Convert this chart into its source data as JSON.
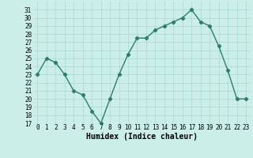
{
  "x": [
    0,
    1,
    2,
    3,
    4,
    5,
    6,
    7,
    8,
    9,
    10,
    11,
    12,
    13,
    14,
    15,
    16,
    17,
    18,
    19,
    20,
    21,
    22,
    23
  ],
  "y": [
    23,
    25,
    24.5,
    23,
    21,
    20.5,
    18.5,
    17,
    20,
    23,
    25.5,
    27.5,
    27.5,
    28.5,
    29,
    29.5,
    30,
    31,
    29.5,
    29,
    26.5,
    23.5,
    20,
    20
  ],
  "xlabel": "Humidex (Indice chaleur)",
  "line_color": "#2e7d6e",
  "marker": "D",
  "marker_size": 2.2,
  "line_width": 1.0,
  "bg_color": "#cceee8",
  "grid_color": "#aad8d2",
  "ylim": [
    17,
    32
  ],
  "xlim": [
    -0.5,
    23.5
  ],
  "yticks": [
    17,
    18,
    19,
    20,
    21,
    22,
    23,
    24,
    25,
    26,
    27,
    28,
    29,
    30,
    31
  ],
  "xticks": [
    0,
    1,
    2,
    3,
    4,
    5,
    6,
    7,
    8,
    9,
    10,
    11,
    12,
    13,
    14,
    15,
    16,
    17,
    18,
    19,
    20,
    21,
    22,
    23
  ],
  "tick_fontsize": 5.5,
  "xlabel_fontsize": 7.0
}
